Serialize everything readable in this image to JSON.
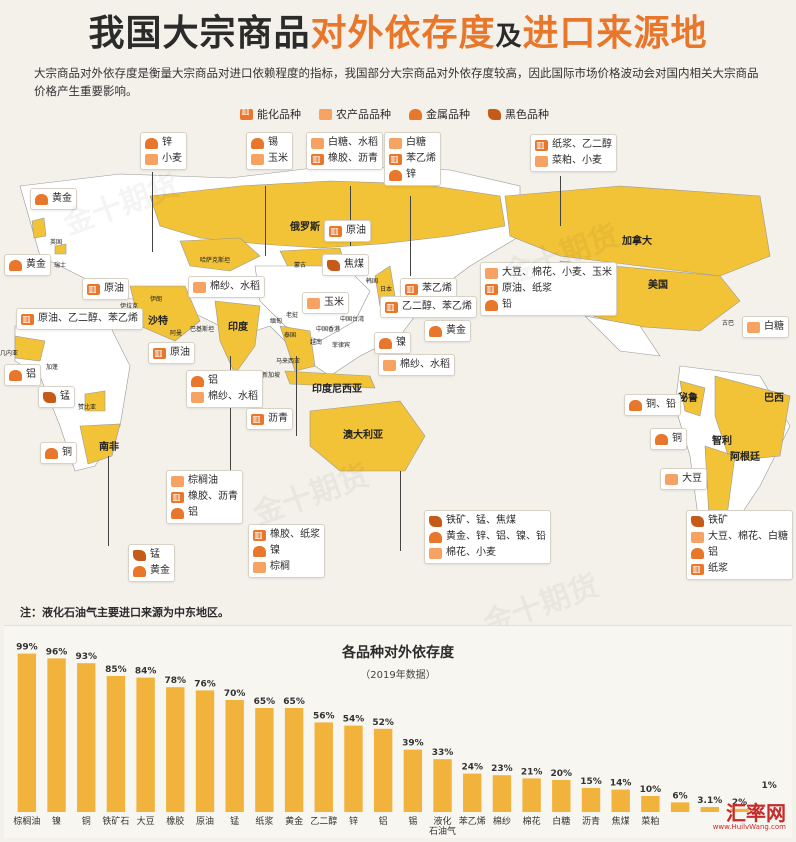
{
  "header": {
    "title_part1": "我国大宗商品",
    "title_part2": "对外依存度",
    "title_part3": "及",
    "title_part4": "进口来源地",
    "intro": "大宗商品对外依存度是衡量大宗商品对进口依赖程度的指标，我国部分大宗商品对外依存度较高，因此国际市场价格波动会对国内相关大宗商品价格产生重要影响。"
  },
  "legend": [
    {
      "icon": "energy-icon",
      "label": "能化品种"
    },
    {
      "icon": "agri-icon",
      "label": "农产品品种"
    },
    {
      "icon": "metal-icon",
      "label": "金属品种"
    },
    {
      "icon": "ferrous-icon",
      "label": "黑色品种"
    }
  ],
  "map": {
    "countries": {
      "russia": "俄罗斯",
      "canada": "加拿大",
      "usa": "美国",
      "india": "印度",
      "indonesia": "印度尼西亚",
      "australia": "澳大利亚",
      "saudi": "沙特",
      "brazil": "巴西",
      "peru": "秘鲁",
      "chile": "智利",
      "argentina": "阿根廷",
      "southafrica": "南非",
      "kazakhstan": "哈萨克斯坦",
      "mongolia": "蒙古",
      "uk": "英国",
      "switzerland": "瑞士",
      "iran": "伊朗",
      "iraq": "伊拉克",
      "oman": "阿曼",
      "pakistan": "巴基斯坦",
      "guinea": "几内亚",
      "gabon": "加蓬",
      "zambia": "赞比亚",
      "myanmar": "缅甸",
      "laos": "老挝",
      "thailand": "泰国",
      "vietnam": "越南",
      "malaysia": "马来西亚",
      "singapore": "新加坡",
      "philippines": "菲律宾",
      "japan": "日本",
      "korea": "韩国",
      "cuba": "古巴",
      "taiwan": "中国台湾",
      "hongkong": "中国香港"
    },
    "cards": [
      {
        "id": "c1",
        "items": [
          {
            "icon": "metal-icon",
            "text": "锌"
          },
          {
            "icon": "agri-icon",
            "text": "小麦"
          }
        ]
      },
      {
        "id": "c2",
        "items": [
          {
            "icon": "metal-icon",
            "text": "锡"
          },
          {
            "icon": "agri-icon",
            "text": "玉米"
          }
        ]
      },
      {
        "id": "c3",
        "items": [
          {
            "icon": "agri-icon",
            "text": "白糖、水稻"
          },
          {
            "icon": "energy-icon",
            "text": "橡胶、沥青"
          }
        ]
      },
      {
        "id": "c4",
        "items": [
          {
            "icon": "agri-icon",
            "text": "白糖"
          },
          {
            "icon": "energy-icon",
            "text": "苯乙烯"
          },
          {
            "icon": "metal-icon",
            "text": "锌"
          }
        ]
      },
      {
        "id": "c5",
        "items": [
          {
            "icon": "energy-icon",
            "text": "纸浆、乙二醇"
          },
          {
            "icon": "agri-icon",
            "text": "菜粕、小麦"
          }
        ]
      },
      {
        "id": "c6",
        "items": [
          {
            "icon": "metal-icon",
            "text": "黄金"
          }
        ]
      },
      {
        "id": "c7",
        "items": [
          {
            "icon": "metal-icon",
            "text": "黄金"
          }
        ]
      },
      {
        "id": "c8",
        "items": [
          {
            "icon": "energy-icon",
            "text": "原油"
          }
        ]
      },
      {
        "id": "c9",
        "items": [
          {
            "icon": "energy-icon",
            "text": "原油、乙二醇、苯乙烯"
          }
        ]
      },
      {
        "id": "c10",
        "items": [
          {
            "icon": "energy-icon",
            "text": "原油"
          }
        ]
      },
      {
        "id": "c11",
        "items": [
          {
            "icon": "agri-icon",
            "text": "棉纱、水稻"
          }
        ]
      },
      {
        "id": "c12",
        "items": [
          {
            "icon": "energy-icon",
            "text": "原油"
          }
        ]
      },
      {
        "id": "c13",
        "items": [
          {
            "icon": "ferrous-icon",
            "text": "焦煤"
          }
        ]
      },
      {
        "id": "c14",
        "items": [
          {
            "icon": "energy-icon",
            "text": "苯乙烯"
          }
        ]
      },
      {
        "id": "c15",
        "items": [
          {
            "icon": "agri-icon",
            "text": "大豆、棉花、小麦、玉米"
          },
          {
            "icon": "energy-icon",
            "text": "原油、纸浆"
          },
          {
            "icon": "metal-icon",
            "text": "铅"
          }
        ]
      },
      {
        "id": "c16",
        "items": [
          {
            "icon": "agri-icon",
            "text": "玉米"
          }
        ]
      },
      {
        "id": "c17",
        "items": [
          {
            "icon": "energy-icon",
            "text": "乙二醇、苯乙烯"
          }
        ]
      },
      {
        "id": "c18",
        "items": [
          {
            "icon": "metal-icon",
            "text": "黄金"
          }
        ]
      },
      {
        "id": "c19",
        "items": [
          {
            "icon": "metal-icon",
            "text": "镍"
          }
        ]
      },
      {
        "id": "c20",
        "items": [
          {
            "icon": "agri-icon",
            "text": "棉纱、水稻"
          }
        ]
      },
      {
        "id": "c21",
        "items": [
          {
            "icon": "metal-icon",
            "text": "铝"
          }
        ]
      },
      {
        "id": "c22",
        "items": [
          {
            "icon": "ferrous-icon",
            "text": "锰"
          }
        ]
      },
      {
        "id": "c23",
        "items": [
          {
            "icon": "metal-icon",
            "text": "铝"
          },
          {
            "icon": "agri-icon",
            "text": "棉纱、水稻"
          }
        ]
      },
      {
        "id": "c24",
        "items": [
          {
            "icon": "energy-icon",
            "text": "沥青"
          }
        ]
      },
      {
        "id": "c25",
        "items": [
          {
            "icon": "metal-icon",
            "text": "铜"
          }
        ]
      },
      {
        "id": "c26",
        "items": [
          {
            "icon": "agri-icon",
            "text": "棕榈油"
          },
          {
            "icon": "energy-icon",
            "text": "橡胶、沥青"
          },
          {
            "icon": "metal-icon",
            "text": "铝"
          }
        ]
      },
      {
        "id": "c27",
        "items": [
          {
            "icon": "energy-icon",
            "text": "橡胶、纸浆"
          },
          {
            "icon": "metal-icon",
            "text": "镍"
          },
          {
            "icon": "agri-icon",
            "text": "棕榈"
          }
        ]
      },
      {
        "id": "c28",
        "items": [
          {
            "icon": "ferrous-icon",
            "text": "锰"
          },
          {
            "icon": "metal-icon",
            "text": "黄金"
          }
        ]
      },
      {
        "id": "c29",
        "items": [
          {
            "icon": "ferrous-icon",
            "text": "铁矿、锰、焦煤"
          },
          {
            "icon": "metal-icon",
            "text": "黄金、锌、铝、镍、铅"
          },
          {
            "icon": "agri-icon",
            "text": "棉花、小麦"
          }
        ]
      },
      {
        "id": "c30",
        "items": [
          {
            "icon": "agri-icon",
            "text": "白糖"
          }
        ]
      },
      {
        "id": "c31",
        "items": [
          {
            "icon": "metal-icon",
            "text": "铜、铅"
          }
        ]
      },
      {
        "id": "c32",
        "items": [
          {
            "icon": "metal-icon",
            "text": "铜"
          }
        ]
      },
      {
        "id": "c33",
        "items": [
          {
            "icon": "agri-icon",
            "text": "大豆"
          }
        ]
      },
      {
        "id": "c34",
        "items": [
          {
            "icon": "ferrous-icon",
            "text": "铁矿"
          },
          {
            "icon": "agri-icon",
            "text": "大豆、棉花、白糖"
          },
          {
            "icon": "metal-icon",
            "text": "铝"
          },
          {
            "icon": "energy-icon",
            "text": "纸浆"
          }
        ]
      }
    ]
  },
  "note": "注：液化石油气主要进口来源为中东地区。",
  "chart_data": {
    "type": "bar",
    "title": "各品种对外依存度",
    "subtitle": "（2019年数据）",
    "categories": [
      "棕榈油",
      "镍",
      "铜",
      "铁矿石",
      "大豆",
      "橡胶",
      "原油",
      "锰",
      "纸浆",
      "黄金",
      "乙二醇",
      "锌",
      "铝",
      "锡",
      "液化石油气",
      "苯乙烯",
      "棉纱",
      "棉花",
      "白糖",
      "沥青",
      "焦煤",
      "菜粕",
      "",
      "",
      ""
    ],
    "values": [
      99,
      96,
      93,
      85,
      84,
      78,
      76,
      70,
      65,
      65,
      56,
      54,
      52,
      39,
      33,
      24,
      23,
      21,
      20,
      15,
      14,
      10,
      6,
      3.1,
      2
    ],
    "value_labels": [
      "99%",
      "96%",
      "93%",
      "85%",
      "84%",
      "78%",
      "76%",
      "70%",
      "65%",
      "65%",
      "56%",
      "54%",
      "52%",
      "39%",
      "33%",
      "24%",
      "23%",
      "21%",
      "20%",
      "15%",
      "14%",
      "10%",
      "6%",
      "3.1%",
      "2%"
    ],
    "extra_label": "1%",
    "ylim": [
      0,
      100
    ],
    "bar_color": "#f2b33d"
  },
  "brand": {
    "main": "汇率网",
    "sub": "www.HuilvWang.com"
  },
  "watermark_text": "金十期货",
  "colors": {
    "accent": "#e8762b",
    "map_highlight": "#f2c237",
    "map_base": "#ffffff",
    "ocean": "#f4f1ea"
  }
}
